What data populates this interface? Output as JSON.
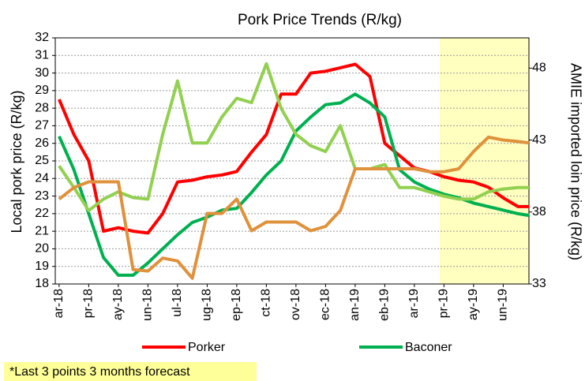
{
  "chart_data": {
    "type": "line",
    "title": "Pork Price Trends (R/kg)",
    "y_label": "Local pork price (R/kg)",
    "y2_label": "AMIE imported loin price (R/kg)",
    "annotation": "*Last 3 points 3 months forecast",
    "x": [
      0,
      0.5,
      1,
      1.5,
      2,
      2.5,
      3,
      3.5,
      4,
      4.5,
      5,
      5.5,
      6,
      6.5,
      7,
      7.5,
      8,
      8.5,
      9,
      9.5,
      10,
      10.5,
      11,
      11.5,
      12,
      12.5,
      13,
      13.5,
      14,
      14.5,
      15,
      15.5,
      15.87
    ],
    "xlim": [
      -0.13,
      15.87
    ],
    "xticks": [
      {
        "value": 0,
        "label": "ar-18"
      },
      {
        "value": 1,
        "label": "pr-18"
      },
      {
        "value": 2,
        "label": "ay-18"
      },
      {
        "value": 3,
        "label": "un-18"
      },
      {
        "value": 4,
        "label": "ul-18"
      },
      {
        "value": 5,
        "label": "ug-18"
      },
      {
        "value": 6,
        "label": "ep-18"
      },
      {
        "value": 7,
        "label": "ct-18"
      },
      {
        "value": 8,
        "label": "ov-18"
      },
      {
        "value": 9,
        "label": "ec-18"
      },
      {
        "value": 10,
        "label": "an-19"
      },
      {
        "value": 11,
        "label": "eb-19"
      },
      {
        "value": 12,
        "label": "ar-19"
      },
      {
        "value": 13,
        "label": "pr-19"
      },
      {
        "value": 14,
        "label": "ay-19"
      },
      {
        "value": 15,
        "label": "un-19"
      }
    ],
    "ylim": [
      18,
      32
    ],
    "yticks": [
      18,
      19,
      20,
      21,
      22,
      23,
      24,
      25,
      26,
      27,
      28,
      29,
      30,
      31,
      32
    ],
    "y2lim": [
      33,
      50.1
    ],
    "y2ticks": [
      33,
      38,
      43,
      48
    ],
    "grid": true,
    "legend": "bottom",
    "shaded_region": [
      12.85,
      15.87
    ],
    "shaded_color": "#ffffc0",
    "series": [
      {
        "name": "Porker",
        "color": "#ff0000",
        "values": [
          28.5,
          26.5,
          25,
          21,
          21.2,
          21,
          20.9,
          22,
          23.8,
          23.9,
          24.1,
          24.2,
          24.4,
          25.5,
          26.5,
          28.8,
          28.8,
          30,
          30.1,
          30.3,
          30.5,
          29.8,
          26,
          25.3,
          24.6,
          24.4,
          24.1,
          23.9,
          23.8,
          23.5,
          22.9,
          22.4,
          22.4
        ]
      },
      {
        "name": "Baconer",
        "color": "#00b050",
        "values": [
          26.4,
          24.5,
          22,
          19.5,
          18.5,
          18.5,
          19.2,
          20,
          20.8,
          21.5,
          21.8,
          22.2,
          22.3,
          23.2,
          24.2,
          25,
          26.7,
          27.5,
          28.2,
          28.3,
          28.8,
          28.3,
          27.5,
          24.5,
          23.8,
          23.4,
          23.1,
          22.9,
          22.6,
          22.4,
          22.2,
          22,
          21.9
        ]
      },
      {
        "color": "#92d050",
        "axis": "y2",
        "values": [
          41.2,
          39.7,
          38.1,
          38.9,
          39.4,
          39.0,
          38.9,
          43.4,
          47.1,
          42.8,
          42.8,
          44.6,
          45.9,
          45.6,
          48.3,
          45.2,
          43.4,
          42.6,
          42.2,
          44.0,
          41.0,
          41.0,
          41.3,
          39.7,
          39.7,
          39.4,
          39.1,
          38.9,
          38.9,
          39.4,
          39.6,
          39.7,
          39.7
        ]
      },
      {
        "color": "#e0913c",
        "axis": "y2",
        "values": [
          38.9,
          39.7,
          40.1,
          40.1,
          40.1,
          34.0,
          33.9,
          34.8,
          34.6,
          33.4,
          37.9,
          37.9,
          38.9,
          36.7,
          37.3,
          37.3,
          37.3,
          36.7,
          37.0,
          38.1,
          41.0,
          41.0,
          41.0,
          41.0,
          41.0,
          40.8,
          40.8,
          41.0,
          42.2,
          43.2,
          43.0,
          42.9,
          42.8
        ]
      }
    ]
  }
}
